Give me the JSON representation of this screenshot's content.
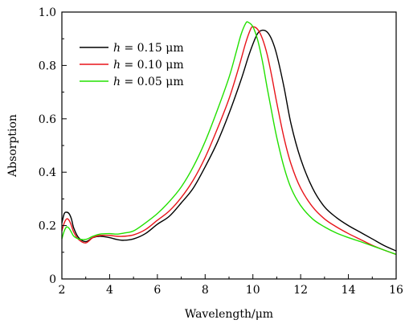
{
  "chart_data": {
    "type": "line",
    "xlabel": "Wavelength/μm",
    "ylabel": "Absorption",
    "xlim": [
      2,
      16
    ],
    "ylim": [
      0,
      1.0
    ],
    "xticks": [
      2,
      4,
      6,
      8,
      10,
      12,
      14,
      16
    ],
    "xtick_labels": [
      "2",
      "4",
      "6",
      "8",
      "10",
      "12",
      "14",
      "16"
    ],
    "yticks": [
      0,
      0.2,
      0.4,
      0.6,
      0.8,
      1.0
    ],
    "ytick_labels": [
      "0",
      "0.2",
      "0.4",
      "0.6",
      "0.8",
      "1.0"
    ],
    "grid": false,
    "legend_position": "top-left",
    "series": [
      {
        "name": "h = 0.15 μm",
        "legend_var": "h",
        "legend_rest": " = 0.15 μm",
        "color": "#000000",
        "x": [
          2.0,
          2.1,
          2.2,
          2.3,
          2.4,
          2.5,
          2.7,
          3.0,
          3.3,
          3.6,
          4.0,
          4.3,
          4.6,
          5.0,
          5.5,
          6.0,
          6.5,
          7.0,
          7.5,
          8.0,
          8.5,
          9.0,
          9.5,
          9.8,
          10.0,
          10.2,
          10.4,
          10.6,
          10.8,
          11.0,
          11.3,
          11.6,
          12.0,
          12.5,
          13.0,
          13.5,
          14.0,
          14.5,
          15.0,
          15.5,
          16.0
        ],
        "y": [
          0.21,
          0.245,
          0.25,
          0.245,
          0.225,
          0.19,
          0.155,
          0.14,
          0.155,
          0.16,
          0.155,
          0.148,
          0.145,
          0.15,
          0.17,
          0.205,
          0.235,
          0.285,
          0.34,
          0.42,
          0.51,
          0.62,
          0.745,
          0.83,
          0.88,
          0.92,
          0.932,
          0.925,
          0.895,
          0.84,
          0.72,
          0.58,
          0.45,
          0.34,
          0.27,
          0.23,
          0.2,
          0.175,
          0.15,
          0.125,
          0.105
        ]
      },
      {
        "name": "h = 0.10 μm",
        "legend_var": "h",
        "legend_rest": " = 0.10 μm",
        "color": "#e8141a",
        "x": [
          2.0,
          2.1,
          2.2,
          2.3,
          2.4,
          2.5,
          2.7,
          3.0,
          3.3,
          3.6,
          4.0,
          4.3,
          4.6,
          5.0,
          5.5,
          6.0,
          6.5,
          7.0,
          7.5,
          8.0,
          8.5,
          9.0,
          9.4,
          9.7,
          9.9,
          10.0,
          10.2,
          10.4,
          10.6,
          10.8,
          11.0,
          11.3,
          11.6,
          12.0,
          12.5,
          13.0,
          13.5,
          14.0,
          14.5,
          15.0,
          15.5,
          16.0
        ],
        "y": [
          0.18,
          0.21,
          0.225,
          0.22,
          0.2,
          0.175,
          0.148,
          0.135,
          0.155,
          0.163,
          0.163,
          0.16,
          0.16,
          0.165,
          0.185,
          0.22,
          0.255,
          0.305,
          0.37,
          0.455,
          0.56,
          0.675,
          0.79,
          0.885,
          0.935,
          0.945,
          0.935,
          0.9,
          0.84,
          0.755,
          0.66,
          0.53,
          0.43,
          0.34,
          0.27,
          0.225,
          0.195,
          0.17,
          0.148,
          0.126,
          0.108,
          0.092
        ]
      },
      {
        "name": "h = 0.05 μm",
        "legend_var": "h",
        "legend_rest": " = 0.05 μm",
        "color": "#22e000",
        "x": [
          2.0,
          2.1,
          2.2,
          2.3,
          2.4,
          2.5,
          2.7,
          3.0,
          3.3,
          3.6,
          4.0,
          4.3,
          4.6,
          5.0,
          5.5,
          6.0,
          6.5,
          7.0,
          7.5,
          8.0,
          8.5,
          9.0,
          9.3,
          9.5,
          9.7,
          9.8,
          10.0,
          10.2,
          10.4,
          10.6,
          10.8,
          11.0,
          11.3,
          11.6,
          12.0,
          12.5,
          13.0,
          13.5,
          14.0,
          14.5,
          15.0,
          15.5,
          16.0
        ],
        "y": [
          0.15,
          0.18,
          0.195,
          0.19,
          0.175,
          0.16,
          0.15,
          0.148,
          0.16,
          0.168,
          0.17,
          0.168,
          0.172,
          0.18,
          0.21,
          0.245,
          0.29,
          0.345,
          0.42,
          0.515,
          0.63,
          0.755,
          0.85,
          0.915,
          0.958,
          0.962,
          0.945,
          0.895,
          0.815,
          0.715,
          0.62,
          0.53,
          0.42,
          0.34,
          0.275,
          0.225,
          0.195,
          0.172,
          0.155,
          0.14,
          0.124,
          0.108,
          0.092
        ]
      }
    ]
  }
}
